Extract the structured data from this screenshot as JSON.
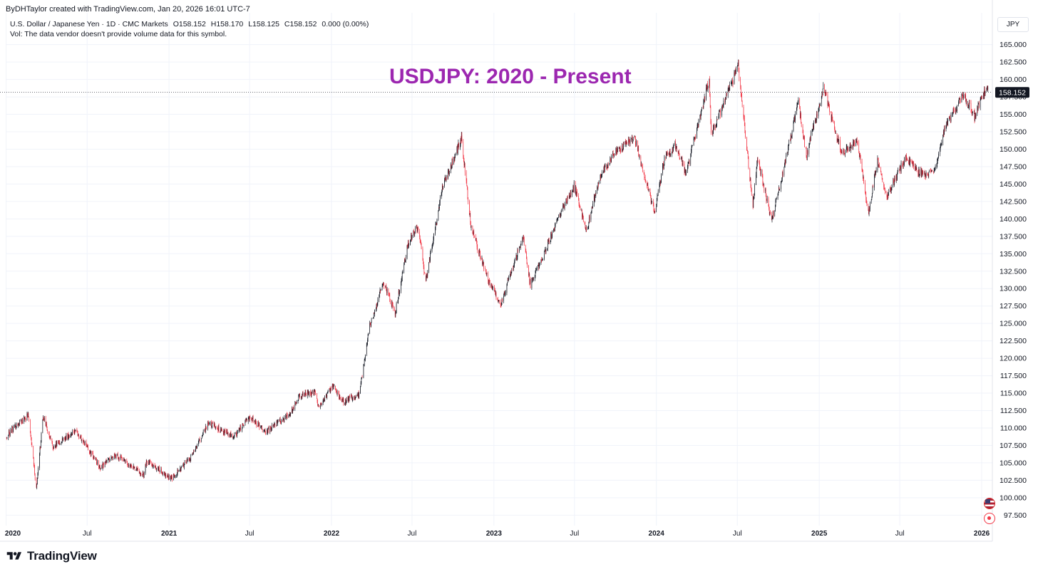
{
  "attribution": "ByDHTaylor created with TradingView.com, Jan 20, 2026 16:01 UTC-7",
  "legend": {
    "symbol": "U.S. Dollar / Japanese Yen · 1D · CMC Markets",
    "open": "O158.152",
    "high": "H158.170",
    "low": "L158.125",
    "close": "C158.152",
    "change": "0.000 (0.00%)",
    "volume_note": "Vol: The data vendor doesn't provide volume data for this symbol."
  },
  "currency_button": "JPY",
  "brand": {
    "name": "TradingView",
    "logo_icon": "tradingview-logo-icon"
  },
  "icons": {
    "flag": "us-flag-event-icon",
    "record": "record-icon"
  },
  "colors": {
    "up": "#131722",
    "down": "#f23645",
    "title": "#9c27b0",
    "grid": "#f0f3fa",
    "axis_text": "#131722"
  },
  "chart_data": {
    "type": "candlestick",
    "title": "USDJPY: 2020 - Present",
    "x_tick_labels": [
      "2020",
      "Jul",
      "2021",
      "Jul",
      "2022",
      "Jul",
      "2023",
      "Jul",
      "2024",
      "Jul",
      "2025",
      "Jul",
      "2026"
    ],
    "x_ticks_bold": [
      "2020",
      "2021",
      "2022",
      "2023",
      "2024",
      "2025",
      "2026"
    ],
    "x_tick_dates": [
      "2020-01-01",
      "2020-07-01",
      "2021-01-01",
      "2021-07-01",
      "2022-01-01",
      "2022-07-01",
      "2023-01-01",
      "2023-07-01",
      "2024-01-01",
      "2024-07-01",
      "2025-01-01",
      "2025-07-01",
      "2026-01-01"
    ],
    "x_range": [
      "2019-12-31",
      "2026-01-25"
    ],
    "ylim": [
      96.0,
      166.5
    ],
    "y_ticks": [
      "97.500",
      "100.000",
      "102.500",
      "105.000",
      "107.500",
      "110.000",
      "112.500",
      "115.000",
      "117.500",
      "120.000",
      "122.500",
      "125.000",
      "127.500",
      "130.000",
      "132.500",
      "135.000",
      "137.500",
      "140.000",
      "142.500",
      "145.000",
      "147.500",
      "150.000",
      "152.500",
      "155.000",
      "157.500",
      "160.000",
      "162.500",
      "165.000"
    ],
    "last_price": 158.152,
    "last_price_label": "158.152",
    "grid": true,
    "price_path": [
      [
        "2020-01-02",
        108.7
      ],
      [
        "2020-01-20",
        110.2
      ],
      [
        "2020-02-20",
        111.8
      ],
      [
        "2020-03-09",
        101.2
      ],
      [
        "2020-03-24",
        111.7
      ],
      [
        "2020-04-15",
        107.2
      ],
      [
        "2020-06-05",
        109.7
      ],
      [
        "2020-07-31",
        104.3
      ],
      [
        "2020-09-01",
        106.2
      ],
      [
        "2020-11-06",
        103.2
      ],
      [
        "2020-11-11",
        105.3
      ],
      [
        "2021-01-06",
        102.7
      ],
      [
        "2021-02-18",
        105.7
      ],
      [
        "2021-03-31",
        110.7
      ],
      [
        "2021-05-25",
        108.7
      ],
      [
        "2021-07-02",
        111.6
      ],
      [
        "2021-08-05",
        109.4
      ],
      [
        "2021-09-29",
        112.0
      ],
      [
        "2021-10-20",
        114.6
      ],
      [
        "2021-11-24",
        115.2
      ],
      [
        "2021-12-02",
        112.9
      ],
      [
        "2022-01-04",
        116.1
      ],
      [
        "2022-01-24",
        113.7
      ],
      [
        "2022-03-04",
        114.8
      ],
      [
        "2022-03-28",
        124.6
      ],
      [
        "2022-04-28",
        131.0
      ],
      [
        "2022-05-24",
        126.5
      ],
      [
        "2022-06-22",
        136.4
      ],
      [
        "2022-07-14",
        138.9
      ],
      [
        "2022-08-01",
        131.0
      ],
      [
        "2022-09-07",
        144.5
      ],
      [
        "2022-10-20",
        151.5
      ],
      [
        "2022-11-11",
        138.7
      ],
      [
        "2022-12-20",
        131.0
      ],
      [
        "2023-01-16",
        127.8
      ],
      [
        "2023-03-08",
        137.5
      ],
      [
        "2023-03-24",
        130.4
      ],
      [
        "2023-05-30",
        140.8
      ],
      [
        "2023-06-30",
        144.8
      ],
      [
        "2023-07-28",
        138.4
      ],
      [
        "2023-08-29",
        146.5
      ],
      [
        "2023-10-03",
        149.8
      ],
      [
        "2023-11-13",
        151.7
      ],
      [
        "2023-12-28",
        140.8
      ],
      [
        "2024-01-19",
        148.5
      ],
      [
        "2024-02-13",
        150.5
      ],
      [
        "2024-03-08",
        146.5
      ],
      [
        "2024-04-29",
        160.2
      ],
      [
        "2024-05-03",
        152.0
      ],
      [
        "2024-07-03",
        161.9
      ],
      [
        "2024-08-05",
        141.7
      ],
      [
        "2024-08-15",
        149.0
      ],
      [
        "2024-09-16",
        139.6
      ],
      [
        "2024-11-15",
        156.7
      ],
      [
        "2024-12-03",
        149.1
      ],
      [
        "2025-01-10",
        158.8
      ],
      [
        "2025-02-20",
        149.4
      ],
      [
        "2025-03-28",
        151.0
      ],
      [
        "2025-04-22",
        140.7
      ],
      [
        "2025-05-12",
        148.6
      ],
      [
        "2025-06-01",
        142.9
      ],
      [
        "2025-07-15",
        149.0
      ],
      [
        "2025-08-13",
        146.5
      ],
      [
        "2025-09-16",
        146.5
      ],
      [
        "2025-10-10",
        153.0
      ],
      [
        "2025-11-20",
        157.8
      ],
      [
        "2025-12-16",
        154.7
      ],
      [
        "2026-01-14",
        159.2
      ],
      [
        "2026-01-20",
        158.152
      ]
    ]
  }
}
